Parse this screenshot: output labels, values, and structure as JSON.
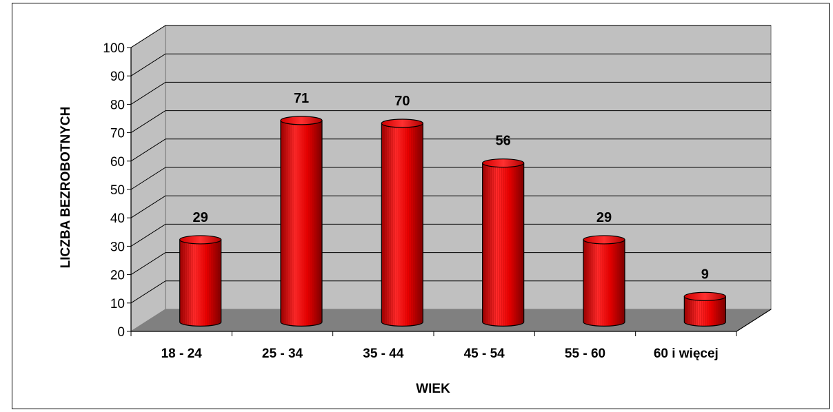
{
  "chart_data": {
    "type": "bar",
    "categories": [
      "18 - 24",
      "25 - 34",
      "35 - 44",
      "45 - 54",
      "55 - 60",
      "60 i więcej"
    ],
    "values": [
      29,
      71,
      70,
      56,
      29,
      9
    ],
    "data_labels": [
      "29",
      "71",
      "70",
      "56",
      "29",
      "9"
    ],
    "title": "",
    "xlabel": "WIEK",
    "ylabel": "LICZBA BEZROBOTNYCH",
    "ylim": [
      0,
      100
    ],
    "y_ticks": [
      0,
      10,
      20,
      30,
      40,
      50,
      60,
      70,
      80,
      90,
      100
    ],
    "y_tick_labels": [
      "0",
      "10",
      "20",
      "30",
      "40",
      "50",
      "60",
      "70",
      "80",
      "90",
      "100"
    ],
    "grid": true,
    "style": "3d-cylinder",
    "colors": {
      "bar": "#ff0000",
      "bar_dark": "#8b0000",
      "wall": "#c0c0c0",
      "floor": "#808080",
      "outline": "#000000"
    }
  }
}
